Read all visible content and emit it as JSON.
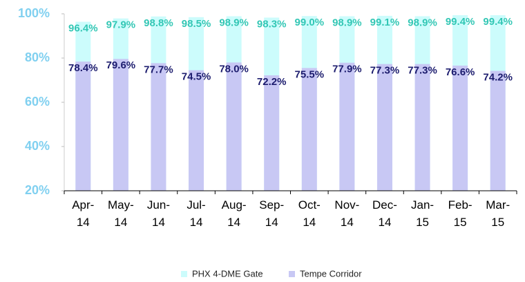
{
  "chart_data": {
    "type": "overlap-bar",
    "categories": [
      "Apr-14",
      "May-14",
      "Jun-14",
      "Jul-14",
      "Aug-14",
      "Sep-14",
      "Oct-14",
      "Nov-14",
      "Dec-14",
      "Jan-15",
      "Feb-15",
      "Mar-15"
    ],
    "series": [
      {
        "name": "PHX 4-DME Gate",
        "color": "#ccfcfc",
        "label_color": "#33c7b5",
        "values": [
          96.4,
          97.9,
          98.8,
          98.5,
          98.9,
          98.3,
          99.0,
          98.9,
          99.1,
          98.9,
          99.4,
          99.4
        ],
        "value_labels": [
          "96.4%",
          "97.9%",
          "98.8%",
          "98.5%",
          "98.9%",
          "98.3%",
          "99.0%",
          "98.9%",
          "99.1%",
          "98.9%",
          "99.4%",
          "99.4%"
        ]
      },
      {
        "name": "Tempe Corridor",
        "color": "#c8c8f4",
        "label_color": "#1c1c6e",
        "values": [
          78.4,
          79.6,
          77.7,
          74.5,
          78.0,
          72.2,
          75.5,
          77.9,
          77.3,
          77.3,
          76.6,
          74.2
        ],
        "value_labels": [
          "78.4%",
          "79.6%",
          "77.7%",
          "74.5%",
          "78.0%",
          "72.2%",
          "75.5%",
          "77.9%",
          "77.3%",
          "77.3%",
          "76.6%",
          "74.2%"
        ]
      }
    ],
    "ylim": [
      20,
      100
    ],
    "yticks": [
      {
        "value": 20,
        "label": "20%"
      },
      {
        "value": 40,
        "label": "40%"
      },
      {
        "value": 60,
        "label": "60%"
      },
      {
        "value": 80,
        "label": "80%"
      },
      {
        "value": 100,
        "label": "100%"
      }
    ],
    "grid": false
  }
}
